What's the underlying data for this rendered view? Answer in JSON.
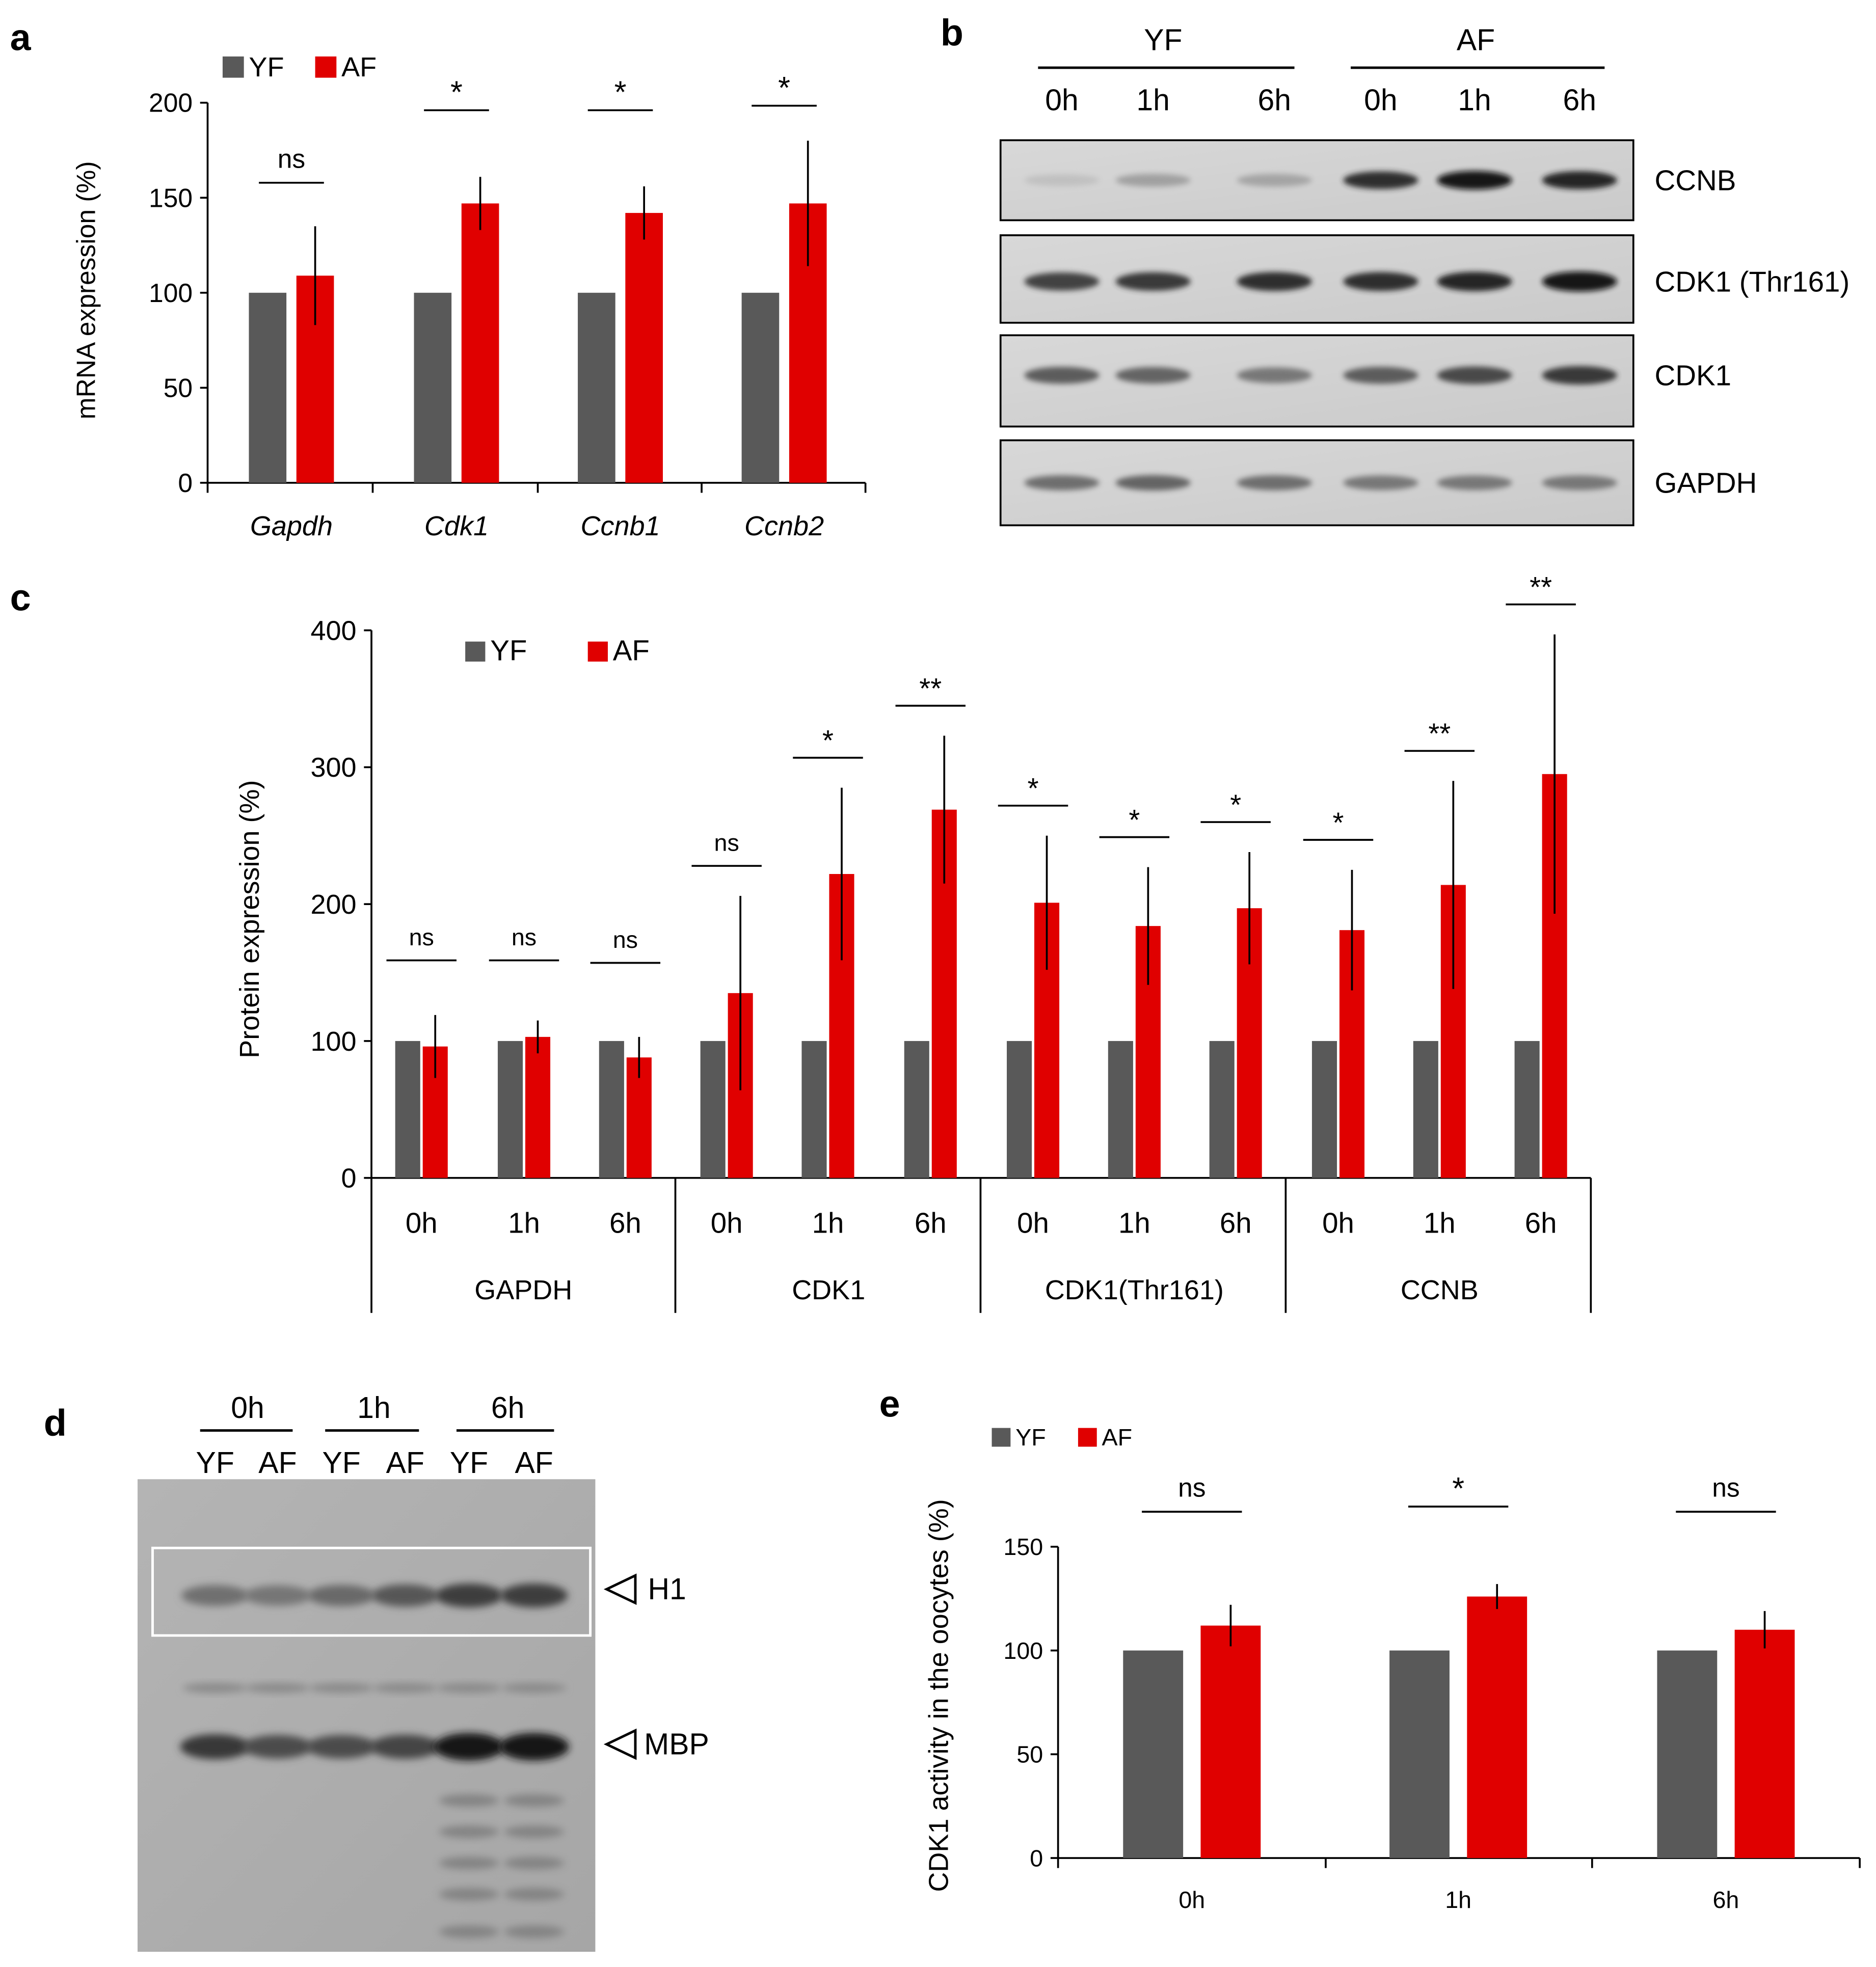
{
  "colors": {
    "yf": "#595959",
    "af": "#e00000",
    "axis": "#000000"
  },
  "panels": {
    "a": {
      "letter": "a"
    },
    "b": {
      "letter": "b",
      "group_labels": [
        "YF",
        "AF"
      ],
      "time_labels": [
        "0h",
        "1h",
        "6h",
        "0h",
        "1h",
        "6h"
      ],
      "blot_labels": [
        "CCNB",
        "CDK1 (Thr161)",
        "CDK1",
        "GAPDH"
      ]
    },
    "c": {
      "letter": "c"
    },
    "d": {
      "letter": "d",
      "time_labels": [
        "0h",
        "1h",
        "6h"
      ],
      "lane_labels": [
        "YF",
        "AF",
        "YF",
        "AF",
        "YF",
        "AF"
      ],
      "band_labels": [
        "H1",
        "MBP"
      ]
    },
    "e": {
      "letter": "e"
    }
  },
  "chart_data": [
    {
      "panel": "a",
      "type": "bar",
      "categories": [
        "Gapdh",
        "Cdk1",
        "Ccnb1",
        "Ccnb2"
      ],
      "series": [
        {
          "name": "YF",
          "values": [
            100,
            100,
            100,
            100
          ]
        },
        {
          "name": "AF",
          "values": [
            109,
            147,
            142,
            147
          ],
          "errors": [
            26,
            14,
            14,
            33
          ]
        }
      ],
      "significance": [
        "ns",
        "*",
        "*",
        "*"
      ],
      "ylabel": "mRNA expression  (%)",
      "ylim": [
        0,
        200
      ],
      "yticks": [
        0,
        50,
        100,
        150,
        200
      ],
      "legend": "top-left",
      "grid": false
    },
    {
      "panel": "c",
      "type": "bar",
      "groups": [
        {
          "name": "GAPDH",
          "times": [
            "0h",
            "1h",
            "6h"
          ]
        },
        {
          "name": "CDK1",
          "times": [
            "0h",
            "1h",
            "6h"
          ]
        },
        {
          "name": "CDK1(Thr161)",
          "times": [
            "0h",
            "1h",
            "6h"
          ]
        },
        {
          "name": "CCNB",
          "times": [
            "0h",
            "1h",
            "6h"
          ]
        }
      ],
      "series": [
        {
          "name": "YF",
          "values": [
            100,
            100,
            100,
            100,
            100,
            100,
            100,
            100,
            100,
            100,
            100,
            100
          ]
        },
        {
          "name": "AF",
          "values": [
            96,
            103,
            88,
            135,
            222,
            269,
            201,
            184,
            197,
            181,
            214,
            295
          ],
          "errors": [
            23,
            12,
            15,
            71,
            63,
            54,
            49,
            43,
            41,
            44,
            76,
            102
          ]
        }
      ],
      "significance": [
        "ns",
        "ns",
        "ns",
        "ns",
        "*",
        "**",
        "*",
        "*",
        "*",
        "*",
        "**",
        "**"
      ],
      "ylabel": "Protein expression  (%)",
      "ylim": [
        0,
        400
      ],
      "yticks": [
        0,
        100,
        200,
        300,
        400
      ],
      "legend": "top-left",
      "grid": false
    },
    {
      "panel": "e",
      "type": "bar",
      "categories": [
        "0h",
        "1h",
        "6h"
      ],
      "series": [
        {
          "name": "YF",
          "values": [
            100,
            100,
            100
          ]
        },
        {
          "name": "AF",
          "values": [
            112,
            126,
            110
          ],
          "errors": [
            10,
            6,
            9
          ]
        }
      ],
      "significance": [
        "ns",
        "*",
        "ns"
      ],
      "ylabel": "CDK1 activity in the oocytes (%)",
      "ylim": [
        0,
        150
      ],
      "yticks": [
        0,
        50,
        100,
        150
      ],
      "legend": "top-left",
      "grid": false
    }
  ]
}
